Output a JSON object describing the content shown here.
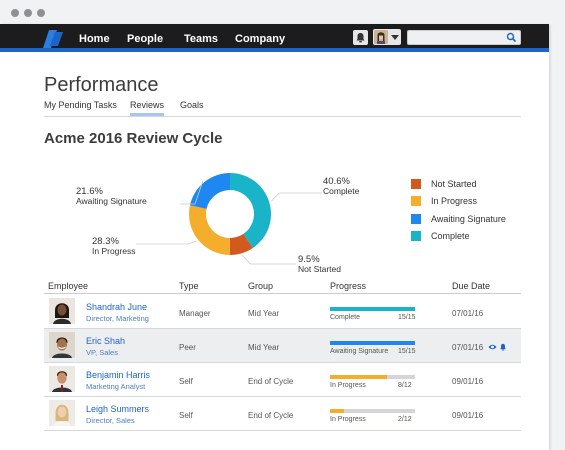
{
  "nav": {
    "links": [
      "Home",
      "People",
      "Teams",
      "Company"
    ],
    "search_value": ""
  },
  "page": {
    "title": "Performance",
    "tabs": [
      {
        "label": "My Pending Tasks",
        "active": false
      },
      {
        "label": "Reviews",
        "active": true
      },
      {
        "label": "Goals",
        "active": false
      }
    ],
    "cycle_title": "Acme 2016 Review Cycle"
  },
  "colors": {
    "not_started": "#d25a1e",
    "in_progress": "#f5ad2c",
    "awaiting_signature": "#1e88f0",
    "complete": "#19b4c8",
    "nav_accent": "#1e64c8"
  },
  "chart_data": {
    "type": "pie",
    "style": "donut",
    "slices": [
      {
        "key": "complete",
        "label": "Complete",
        "value": 40.6,
        "value_label": "40.6%"
      },
      {
        "key": "not_started",
        "label": "Not Started",
        "value": 9.5,
        "value_label": "9.5%"
      },
      {
        "key": "in_progress",
        "label": "In Progress",
        "value": 28.3,
        "value_label": "28.3%"
      },
      {
        "key": "awaiting_signature",
        "label": "Awaiting Signature",
        "value": 21.6,
        "value_label": "21.6%"
      }
    ],
    "legend": [
      {
        "key": "not_started",
        "label": "Not Started"
      },
      {
        "key": "in_progress",
        "label": "In Progress"
      },
      {
        "key": "awaiting_signature",
        "label": "Awaiting Signature"
      },
      {
        "key": "complete",
        "label": "Complete"
      }
    ],
    "legend_position": "right"
  },
  "table": {
    "headers": [
      "Employee",
      "Type",
      "Group",
      "Progress",
      "Due Date"
    ],
    "rows": [
      {
        "name": "Shandrah June",
        "role": "Director, Marketing",
        "type": "Manager",
        "group": "Mid Year",
        "progress_status": "Complete",
        "progress_key": "complete",
        "progress_count": "15/15",
        "progress_fraction": 1.0,
        "due": "07/01/16",
        "highlight": false,
        "actions": false
      },
      {
        "name": "Eric Shah",
        "role": "VP, Sales",
        "type": "Peer",
        "group": "Mid Year",
        "progress_status": "Awaiting Signature",
        "progress_key": "awaiting_signature",
        "progress_count": "15/15",
        "progress_fraction": 1.0,
        "due": "07/01/16",
        "highlight": true,
        "actions": true
      },
      {
        "name": "Benjamin Harris",
        "role": "Marketing Analyst",
        "type": "Self",
        "group": "End of Cycle",
        "progress_status": "In Progress",
        "progress_key": "in_progress",
        "progress_count": "8/12",
        "progress_fraction": 0.6667,
        "due": "09/01/16",
        "highlight": false,
        "actions": false
      },
      {
        "name": "Leigh Summers",
        "role": "Director, Sales",
        "type": "Self",
        "group": "End of Cycle",
        "progress_status": "In Progress",
        "progress_key": "in_progress",
        "progress_count": "2/12",
        "progress_fraction": 0.1667,
        "due": "09/01/16",
        "highlight": false,
        "actions": false
      }
    ]
  }
}
